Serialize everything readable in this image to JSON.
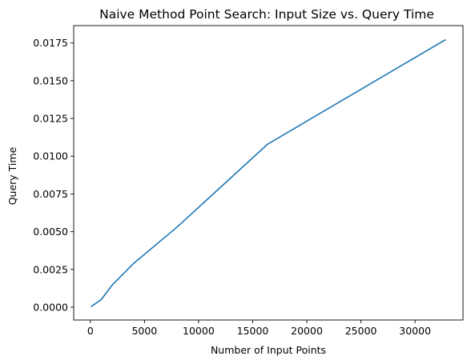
{
  "chart_data": {
    "type": "line",
    "title": "Naive Method Point Search: Input Size vs. Query Time",
    "xlabel": "Number of Input Points",
    "ylabel": "Query Time",
    "xlim": [
      -1540,
      34428
    ],
    "ylim": [
      -0.00085,
      0.01865
    ],
    "grid": false,
    "x_ticks": [
      0,
      5000,
      10000,
      15000,
      20000,
      25000,
      30000
    ],
    "x_tick_labels": [
      "0",
      "5000",
      "10000",
      "15000",
      "20000",
      "25000",
      "30000"
    ],
    "y_ticks": [
      0.0,
      0.0025,
      0.005,
      0.0075,
      0.01,
      0.0125,
      0.015,
      0.0175
    ],
    "y_tick_labels": [
      "0.0000",
      "0.0025",
      "0.0050",
      "0.0075",
      "0.0100",
      "0.0125",
      "0.0150",
      "0.0175"
    ],
    "series": [
      {
        "color": "#1f77b4",
        "x": [
          100,
          1000,
          2000,
          4000,
          8000,
          16384,
          32768
        ],
        "y": [
          5e-05,
          0.0005,
          0.00145,
          0.0029,
          0.0053,
          0.0108,
          0.0177
        ]
      }
    ]
  }
}
